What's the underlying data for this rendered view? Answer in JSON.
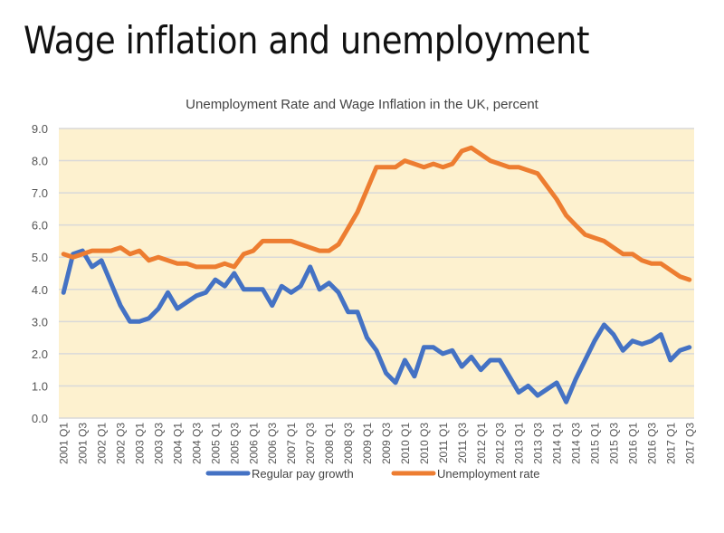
{
  "slide": {
    "title": "Wage inflation and unemployment"
  },
  "chart_data": {
    "type": "line",
    "title": "Unemployment Rate and Wage Inflation in the UK, percent",
    "xlabel": "",
    "ylabel": "",
    "ylim": [
      0,
      9
    ],
    "yticks": [
      "0.0",
      "1.0",
      "2.0",
      "3.0",
      "4.0",
      "5.0",
      "6.0",
      "7.0",
      "8.0",
      "9.0"
    ],
    "grid": true,
    "legend": "bottom",
    "plot_background": "#fdf1cf",
    "x": [
      "2001 Q1",
      "2001 Q2",
      "2001 Q3",
      "2001 Q4",
      "2002 Q1",
      "2002 Q2",
      "2002 Q3",
      "2002 Q4",
      "2003 Q1",
      "2003 Q2",
      "2003 Q3",
      "2003 Q4",
      "2004 Q1",
      "2004 Q2",
      "2004 Q3",
      "2004 Q4",
      "2005 Q1",
      "2005 Q2",
      "2005 Q3",
      "2005 Q4",
      "2006 Q1",
      "2006 Q2",
      "2006 Q3",
      "2006 Q4",
      "2007 Q1",
      "2007 Q2",
      "2007 Q3",
      "2007 Q4",
      "2008 Q1",
      "2008 Q2",
      "2008 Q3",
      "2008 Q4",
      "2009 Q1",
      "2009 Q2",
      "2009 Q3",
      "2009 Q4",
      "2010 Q1",
      "2010 Q2",
      "2010 Q3",
      "2010 Q4",
      "2011 Q1",
      "2011 Q2",
      "2011 Q3",
      "2011 Q4",
      "2012 Q1",
      "2012 Q2",
      "2012 Q3",
      "2012 Q4",
      "2013 Q1",
      "2013 Q2",
      "2013 Q3",
      "2013 Q4",
      "2014 Q1",
      "2014 Q2",
      "2014 Q3",
      "2014 Q4",
      "2015 Q1",
      "2015 Q2",
      "2015 Q3",
      "2015 Q4",
      "2016 Q1",
      "2016 Q2",
      "2016 Q3",
      "2016 Q4",
      "2017 Q1",
      "2017 Q2",
      "2017 Q3"
    ],
    "xtick_labels": [
      "2001 Q1",
      "2001 Q3",
      "2002 Q1",
      "2002 Q3",
      "2003 Q1",
      "2003 Q3",
      "2004 Q1",
      "2004 Q3",
      "2005 Q1",
      "2005 Q3",
      "2006 Q1",
      "2006 Q3",
      "2007 Q1",
      "2007 Q3",
      "2008 Q1",
      "2008 Q3",
      "2009 Q1",
      "2009 Q3",
      "2010 Q1",
      "2010 Q3",
      "2011 Q1",
      "2011 Q3",
      "2012 Q1",
      "2012 Q3",
      "2013 Q1",
      "2013 Q3",
      "2014 Q1",
      "2014 Q3",
      "2015 Q1",
      "2015 Q3",
      "2016 Q1",
      "2016 Q3",
      "2017 Q1",
      "2017 Q3"
    ],
    "series": [
      {
        "name": "Regular pay growth",
        "color": "#4472c4",
        "values": [
          3.9,
          5.1,
          5.2,
          4.7,
          4.9,
          4.2,
          3.5,
          3.0,
          3.0,
          3.1,
          3.4,
          3.9,
          3.4,
          3.6,
          3.8,
          3.9,
          4.3,
          4.1,
          4.5,
          4.0,
          4.0,
          4.0,
          3.5,
          4.1,
          3.9,
          4.1,
          4.7,
          4.0,
          4.2,
          3.9,
          3.3,
          3.3,
          2.5,
          2.1,
          1.4,
          1.1,
          1.8,
          1.3,
          2.2,
          2.2,
          2.0,
          2.1,
          1.6,
          1.9,
          1.5,
          1.8,
          1.8,
          1.3,
          0.8,
          1.0,
          0.7,
          0.9,
          1.1,
          0.5,
          1.2,
          1.8,
          2.4,
          2.9,
          2.6,
          2.1,
          2.4,
          2.3,
          2.4,
          2.6,
          1.8,
          2.1,
          2.2
        ]
      },
      {
        "name": "Unemployment rate",
        "color": "#ed7d31",
        "values": [
          5.1,
          5.0,
          5.1,
          5.2,
          5.2,
          5.2,
          5.3,
          5.1,
          5.2,
          4.9,
          5.0,
          4.9,
          4.8,
          4.8,
          4.7,
          4.7,
          4.7,
          4.8,
          4.7,
          5.1,
          5.2,
          5.5,
          5.5,
          5.5,
          5.5,
          5.4,
          5.3,
          5.2,
          5.2,
          5.4,
          5.9,
          6.4,
          7.1,
          7.8,
          7.8,
          7.8,
          8.0,
          7.9,
          7.8,
          7.9,
          7.8,
          7.9,
          8.3,
          8.4,
          8.2,
          8.0,
          7.9,
          7.8,
          7.8,
          7.7,
          7.6,
          7.2,
          6.8,
          6.3,
          6.0,
          5.7,
          5.6,
          5.5,
          5.3,
          5.1,
          5.1,
          4.9,
          4.8,
          4.8,
          4.6,
          4.4,
          4.3
        ]
      }
    ]
  }
}
